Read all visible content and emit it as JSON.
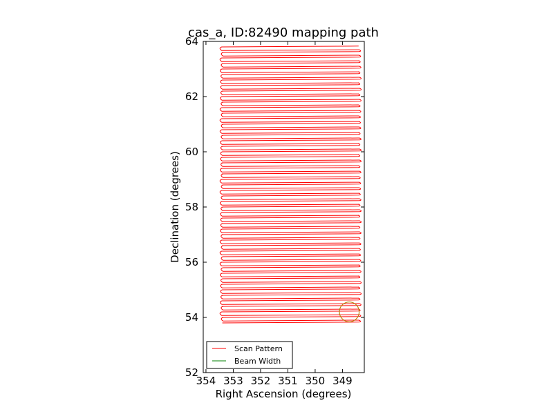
{
  "chart_data": {
    "type": "line",
    "title": "cas_a, ID:82490 mapping path",
    "xlabel": "Right Ascension (degrees)",
    "ylabel": "Declination (degrees)",
    "xlim": [
      354.1,
      348.2
    ],
    "ylim": [
      52,
      64
    ],
    "xticks": [
      "354",
      "353",
      "352",
      "351",
      "350",
      "349"
    ],
    "yticks": [
      "52",
      "54",
      "56",
      "58",
      "60",
      "62",
      "64"
    ],
    "grid": false,
    "legend": {
      "placement": "lower-left",
      "entries": [
        "Scan Pattern",
        "Beam Width"
      ]
    },
    "series": [
      {
        "name": "Scan Pattern",
        "color": "#ff0000",
        "ra_min": 348.4,
        "ra_max": 353.4,
        "dec_min": 53.8,
        "dec_max": 63.8,
        "row_spacing": 0.1
      },
      {
        "name": "Beam Width",
        "color": "#008000",
        "shape": "circle",
        "center": [
          348.75,
          54.2
        ],
        "radius_deg": 0.36,
        "edge_color": "#b8860b"
      }
    ]
  }
}
